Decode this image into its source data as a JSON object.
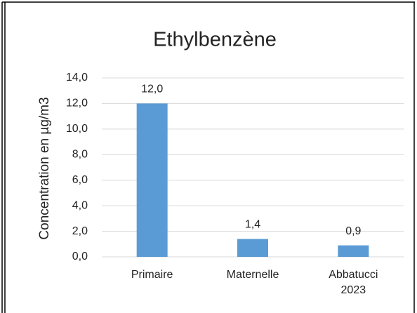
{
  "chart_data": {
    "type": "bar",
    "title": "Ethylbenzène",
    "y_label": "Concentration en µg/m3",
    "categories": [
      "Primaire",
      "Maternelle",
      "Abbatucci 2023"
    ],
    "values": [
      12.0,
      1.4,
      0.9
    ],
    "value_labels": [
      "12,0",
      "1,4",
      "0,9"
    ],
    "color": "#5b9bd5",
    "ylim": [
      0,
      14
    ],
    "yticks": [
      {
        "value": 0,
        "label": "0,0"
      },
      {
        "value": 2,
        "label": "2,0"
      },
      {
        "value": 4,
        "label": "4,0"
      },
      {
        "value": 6,
        "label": "6,0"
      },
      {
        "value": 8,
        "label": "8,0"
      },
      {
        "value": 10,
        "label": "10,0"
      },
      {
        "value": 12,
        "label": "12,0"
      },
      {
        "value": 14,
        "label": "14,0"
      }
    ],
    "grid": true
  }
}
